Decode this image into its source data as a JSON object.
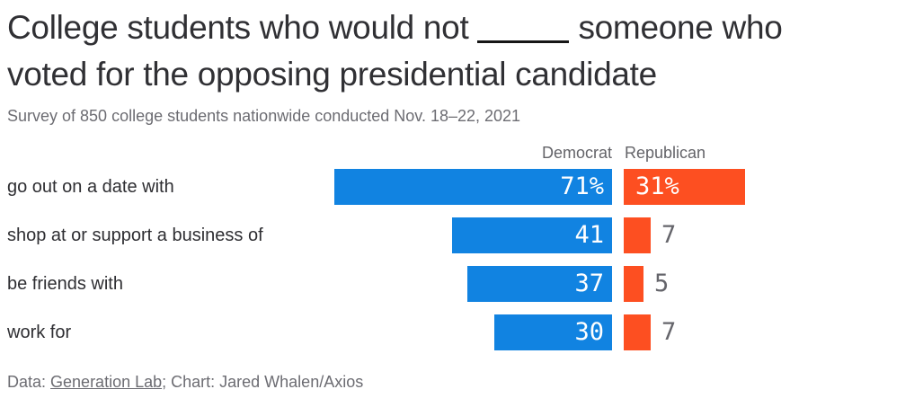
{
  "title": {
    "pre_blank": "College students who would not",
    "post_blank": "someone who",
    "line2": "voted for the opposing presidential candidate"
  },
  "subtitle": "Survey of 850 college students nationwide conducted Nov. 18–22, 2021",
  "legend": {
    "democrat": "Democrat",
    "republican": "Republican"
  },
  "footer": {
    "prefix": "Data: ",
    "source_link": "Generation Lab",
    "suffix": "; Chart: Jared Whalen/Axios"
  },
  "colors": {
    "democrat": "#1183e1",
    "republican": "#fd4f21",
    "title_text": "#303034",
    "muted_text": "#6c6c72",
    "outside_value_text": "#65656b"
  },
  "chart_data": {
    "type": "bar",
    "orientation": "horizontal",
    "title": "College students who would not ____ someone who voted for the opposing presidential candidate",
    "subtitle": "Survey of 850 college students nationwide conducted Nov. 18–22, 2021",
    "source": "Data: Generation Lab; Chart: Jared Whalen/Axios",
    "legend_position": "top",
    "grid": false,
    "value_unit": "percent",
    "xlim": [
      0,
      71
    ],
    "categories": [
      "go out on a date with",
      "shop at or support a business of",
      "be friends with",
      "work for"
    ],
    "series": [
      {
        "name": "Democrat",
        "color": "#1183e1",
        "values": [
          71,
          41,
          37,
          30
        ],
        "labels": [
          "71%",
          "41",
          "37",
          "30"
        ]
      },
      {
        "name": "Republican",
        "color": "#fd4f21",
        "values": [
          31,
          7,
          5,
          7
        ],
        "labels": [
          "31%",
          "7",
          "5",
          "7"
        ]
      }
    ]
  }
}
